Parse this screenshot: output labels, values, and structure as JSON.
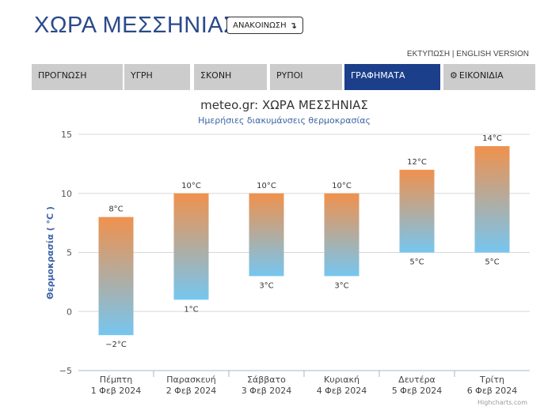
{
  "header": {
    "title": "ΧΩΡΑ ΜΕΣΣΗΝΙΑΣ",
    "announce_label": "ΑΝΑΚΟΙΝΩΣΗ",
    "announce_arrow": "↴",
    "print_label": "ΕΚΤΥΠΩΣΗ",
    "separator": " | ",
    "english_label": "ENGLISH VERSION"
  },
  "tabs": [
    {
      "label": "ΠΡΟΓΝΩΣΗ",
      "active": false
    },
    {
      "label": "ΥΓΡΗ",
      "active": false
    },
    {
      "label": "ΣΚΟΝΗ",
      "active": false
    },
    {
      "label": "ΡΥΠΟΙ",
      "active": false
    },
    {
      "label": "ΓΡΑΦΗΜΑΤΑ",
      "active": true
    },
    {
      "label": "ΕΙΚΟΝΙΔΙΑ",
      "active": false,
      "icon": "gear-icon"
    }
  ],
  "chart_data": {
    "type": "bar",
    "subtype": "columnrange",
    "title": "meteo.gr: ΧΩΡΑ ΜΕΣΣΗΝΙΑΣ",
    "subtitle": "Ημερήσιες διακυμάνσεις θερμοκρασίας",
    "ylabel": "Θερμοκρασία ( °C )",
    "xlabel": "",
    "ylim": [
      -5,
      15
    ],
    "yticks": [
      -5,
      0,
      5,
      10,
      15
    ],
    "grid": true,
    "categories": [
      {
        "day": "Πέμπτη",
        "date": "1 Φεβ 2024"
      },
      {
        "day": "Παρασκευή",
        "date": "2 Φεβ 2024"
      },
      {
        "day": "Σάββατο",
        "date": "3 Φεβ 2024"
      },
      {
        "day": "Κυριακή",
        "date": "4 Φεβ 2024"
      },
      {
        "day": "Δευτέρα",
        "date": "5 Φεβ 2024"
      },
      {
        "day": "Τρίτη",
        "date": "6 Φεβ 2024"
      }
    ],
    "low": [
      -2,
      1,
      3,
      3,
      5,
      5
    ],
    "high": [
      8,
      10,
      10,
      10,
      12,
      14
    ],
    "unit": "°C",
    "colors": {
      "high": "#f0914d",
      "low": "#76c6f0",
      "grid": "#d8d8d8",
      "axis": "#aab4c8",
      "title": "#333333",
      "subtitle": "#3d63a6",
      "ylabel": "#3d63a6"
    },
    "credit": "Highcharts.com"
  }
}
